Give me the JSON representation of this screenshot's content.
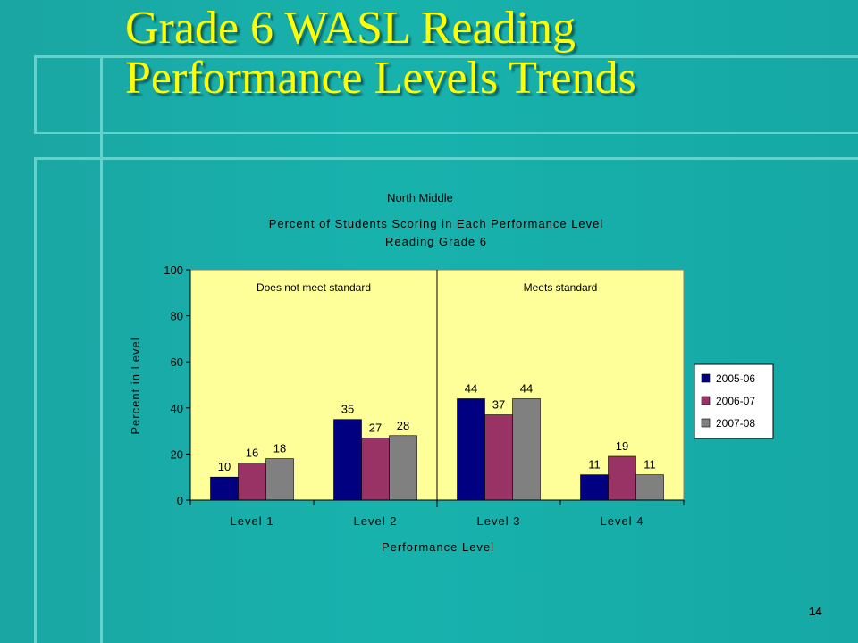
{
  "slide": {
    "title_line1": "Grade 6 WASL Reading",
    "title_line2": "Performance Levels Trends",
    "page_number": "14"
  },
  "colors": {
    "title": "#ffff00",
    "plot_background": "#ffff99",
    "series": [
      "#000080",
      "#993366",
      "#808080"
    ]
  },
  "chart_data": {
    "type": "bar",
    "school": "North Middle",
    "title_line1": "Percent of Students Scoring in Each Performance Level",
    "title_line2": "Reading Grade 6",
    "xlabel": "Performance Level",
    "ylabel": "Percent in Level",
    "ylim": [
      0,
      100
    ],
    "yticks": [
      0,
      20,
      40,
      60,
      80,
      100
    ],
    "categories": [
      "Level 1",
      "Level 2",
      "Level 3",
      "Level 4"
    ],
    "series": [
      {
        "name": "2005-06",
        "values": [
          10,
          35,
          44,
          11
        ]
      },
      {
        "name": "2006-07",
        "values": [
          16,
          27,
          37,
          19
        ]
      },
      {
        "name": "2007-08",
        "values": [
          18,
          28,
          44,
          11
        ]
      }
    ],
    "regions": [
      {
        "label": "Does not meet standard",
        "categories": [
          "Level 1",
          "Level 2"
        ]
      },
      {
        "label": "Meets standard",
        "categories": [
          "Level 3",
          "Level 4"
        ]
      }
    ],
    "legend_position": "right",
    "grid": false,
    "data_labels": true
  }
}
